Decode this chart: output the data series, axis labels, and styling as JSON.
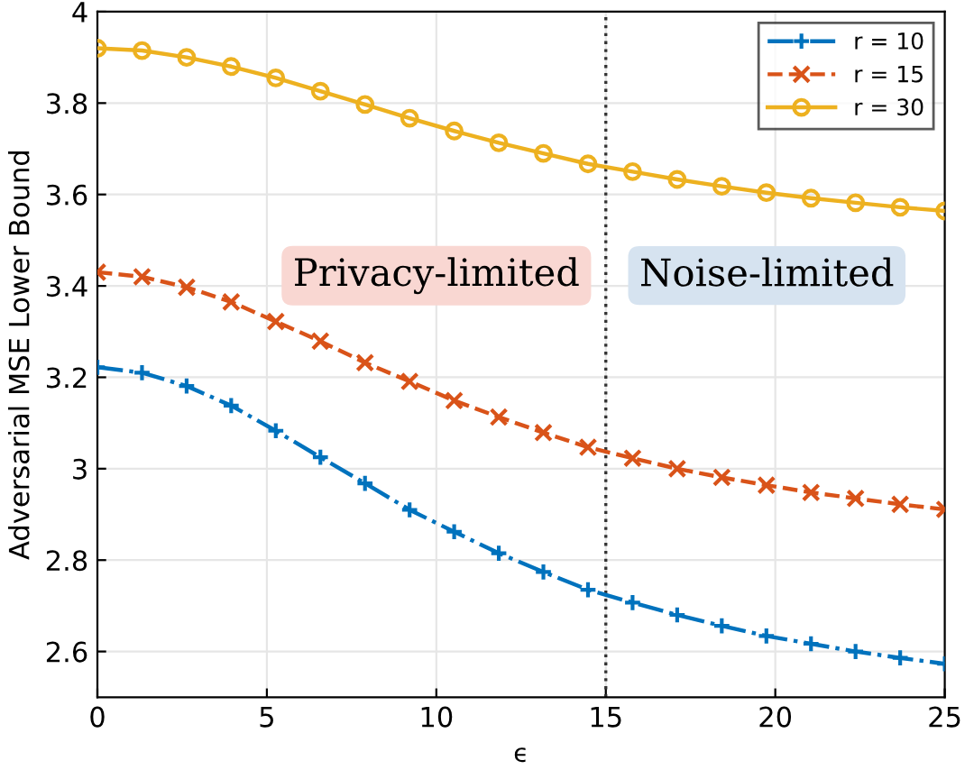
{
  "chart_data": {
    "type": "line",
    "x": [
      0,
      1.316,
      2.632,
      3.947,
      5.263,
      6.579,
      7.895,
      9.211,
      10.526,
      11.842,
      13.158,
      14.474,
      15.789,
      17.105,
      18.421,
      19.737,
      21.053,
      22.368,
      23.684,
      25
    ],
    "series": [
      {
        "name": "r = 10",
        "color": "#0072bd",
        "marker": "plus",
        "line_style": "dashdot",
        "values": [
          3.222,
          3.21,
          3.181,
          3.138,
          3.083,
          3.025,
          2.968,
          2.91,
          2.862,
          2.815,
          2.774,
          2.735,
          2.707,
          2.68,
          2.656,
          2.634,
          2.617,
          2.6,
          2.586,
          2.573
        ]
      },
      {
        "name": "r = 15",
        "color": "#d95319",
        "marker": "cross",
        "line_style": "dashed",
        "values": [
          3.43,
          3.42,
          3.397,
          3.365,
          3.322,
          3.279,
          3.232,
          3.191,
          3.149,
          3.113,
          3.079,
          3.047,
          3.023,
          3.0,
          2.981,
          2.964,
          2.948,
          2.935,
          2.922,
          2.911
        ]
      },
      {
        "name": "r = 30",
        "color": "#edb120",
        "marker": "circle",
        "line_style": "solid",
        "values": [
          3.92,
          3.915,
          3.9,
          3.88,
          3.855,
          3.826,
          3.797,
          3.767,
          3.739,
          3.713,
          3.69,
          3.667,
          3.65,
          3.633,
          3.618,
          3.604,
          3.592,
          3.582,
          3.572,
          3.564
        ]
      }
    ],
    "xlabel": "ϵ",
    "ylabel": "Adversarial MSE Lower Bound",
    "xlim": [
      0,
      25
    ],
    "xticks": [
      0,
      5,
      10,
      15,
      20,
      25
    ],
    "ylim": [
      2.5,
      4
    ],
    "yticks": [
      2.6,
      2.8,
      3,
      3.2,
      3.4,
      3.6,
      3.8,
      4
    ],
    "ref_lines": [
      {
        "axis": "x",
        "value": 15,
        "color": "#333333",
        "line_style": "dotted"
      }
    ],
    "annotations": [
      "Privacy-limited",
      "Noise-limited"
    ],
    "grid": true,
    "legend": "top right"
  }
}
